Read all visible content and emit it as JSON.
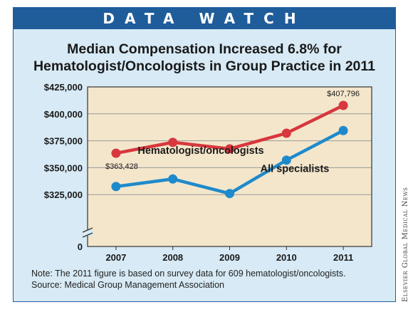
{
  "banner": "DATA WATCH",
  "title_lines": [
    "Median Compensation Increased 6.8% for",
    "Hematologist/Oncologists in Group Practice in 2011"
  ],
  "notes": [
    "Note: The 2011 figure is based on survey data for 609 hematologist/oncologists.",
    "Source: Medical Group Management Association"
  ],
  "credit": "Elsevier Global Medical News",
  "colors": {
    "banner": "#1f5d9a",
    "background": "#d7eaf5",
    "plot_area": "#f4e6cb",
    "hem_onc": "#d7373d",
    "all_specialists": "#1f8acb"
  },
  "chart_data": {
    "type": "line",
    "categories": [
      "2007",
      "2008",
      "2009",
      "2010",
      "2011"
    ],
    "y_ticks": [
      {
        "value": 425000,
        "label": "$425,000"
      },
      {
        "value": 400000,
        "label": "$400,000"
      },
      {
        "value": 375000,
        "label": "$375,000"
      },
      {
        "value": 350000,
        "label": "$350,000"
      },
      {
        "value": 325000,
        "label": "$325,000"
      }
    ],
    "y_zero_label": "0",
    "axis_break": true,
    "ylim": [
      300000,
      425000
    ],
    "grid": true,
    "series": [
      {
        "name": "Hematologist/oncologists",
        "color": "#d7373d",
        "values": [
          363428,
          373500,
          367500,
          382000,
          407796
        ],
        "point_labels": [
          "$363,428",
          "",
          "",
          "",
          "$407,796"
        ]
      },
      {
        "name": "All specialists",
        "color": "#1f8acb",
        "values": [
          332500,
          339500,
          326000,
          357000,
          384500
        ],
        "point_labels": [
          "",
          "",
          "",
          "",
          ""
        ]
      }
    ]
  }
}
